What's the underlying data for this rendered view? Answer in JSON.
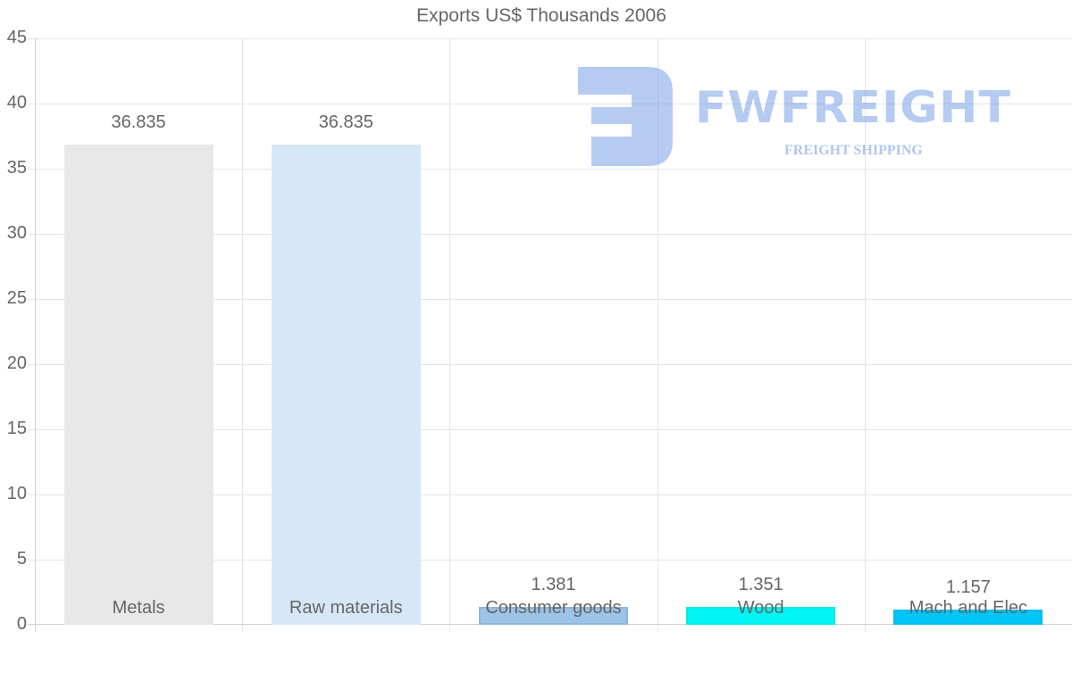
{
  "chart_data": {
    "type": "bar",
    "title": "Exports US$ Thousands 2006",
    "xlabel": "",
    "ylabel": "",
    "ylim": [
      0,
      45
    ],
    "yticks": [
      0,
      5,
      10,
      15,
      20,
      25,
      30,
      35,
      40,
      45
    ],
    "grid": true,
    "legend": null,
    "categories": [
      "Metals",
      "Raw materials",
      "Consumer goods",
      "Wood",
      "Mach and Elec"
    ],
    "values": [
      36.835,
      36.835,
      1.381,
      1.351,
      1.157
    ],
    "data_labels": [
      "36.835",
      "36.835",
      "1.381",
      "1.351",
      "1.157"
    ],
    "colors": [
      "#e8e8e8",
      "#d6e7f8",
      "#9dc3e6",
      "#00f5f5",
      "#00c5f7"
    ],
    "border_colors": [
      "#e8e8e8",
      "#d6e7f8",
      "#8fb6dd",
      "#00ecec",
      "#00bdef"
    ]
  },
  "watermark": {
    "brand": "FWFREIGHT",
    "tagline": "FREIGHT SHIPPING"
  }
}
